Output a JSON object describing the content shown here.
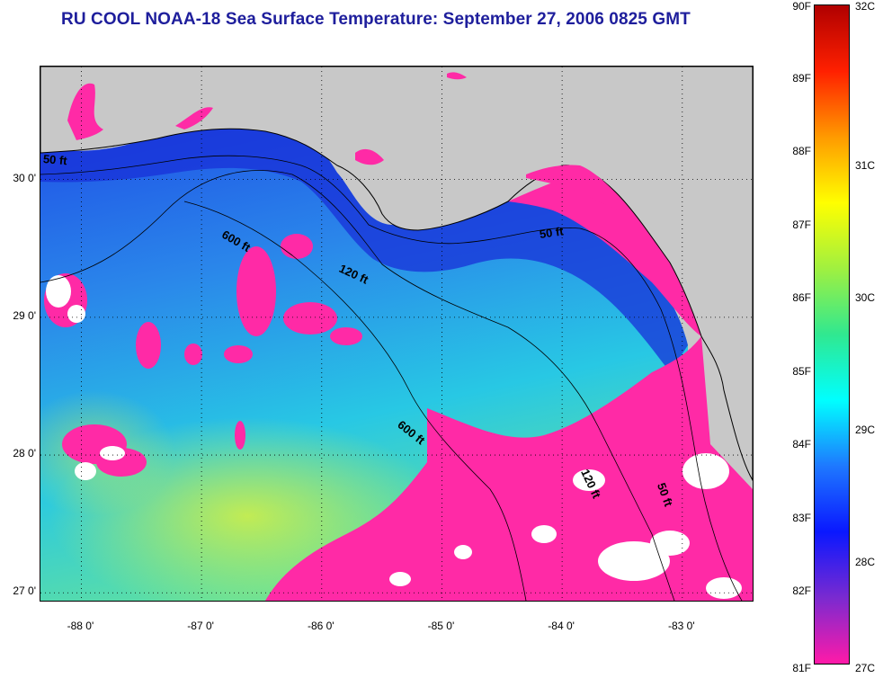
{
  "title": "RU COOL  NOAA-18  Sea Surface Temperature:  September 27, 2006 0825 GMT",
  "map": {
    "lat_ticks": [
      {
        "value": 30.0,
        "label": "30 0'"
      },
      {
        "value": 29.0,
        "label": "29 0'"
      },
      {
        "value": 28.0,
        "label": "28 0'"
      },
      {
        "value": 27.0,
        "label": "27 0'"
      }
    ],
    "lon_ticks": [
      {
        "value": -88.0,
        "label": "-88 0'"
      },
      {
        "value": -87.0,
        "label": "-87 0'"
      },
      {
        "value": -86.0,
        "label": "-86 0'"
      },
      {
        "value": -85.0,
        "label": "-85 0'"
      },
      {
        "value": -84.0,
        "label": "-84 0'"
      },
      {
        "value": -83.0,
        "label": "-83 0'"
      }
    ],
    "depth_contours": [
      {
        "label": "50 ft"
      },
      {
        "label": "50 ft"
      },
      {
        "label": "50 ft"
      },
      {
        "label": "120 ft"
      },
      {
        "label": "120 ft"
      },
      {
        "label": "600 ft"
      },
      {
        "label": "600 ft"
      }
    ],
    "colors": {
      "land": "#c8c8c8",
      "cloud": "#ffffff",
      "coast": "#000000"
    }
  },
  "colorbar": {
    "fahrenheit": [
      "90F",
      "89F",
      "88F",
      "87F",
      "86F",
      "85F",
      "84F",
      "83F",
      "82F",
      "81F"
    ],
    "celsius": [
      "32C",
      "31C",
      "30C",
      "29C",
      "28C",
      "27C"
    ],
    "colors": [
      "#ff1aa8",
      "#7a2ad0",
      "#0a18ff",
      "#1e78ff",
      "#00ffff",
      "#30e890",
      "#a0f040",
      "#ffff00",
      "#ff9a00",
      "#ff2000",
      "#b00000"
    ]
  }
}
